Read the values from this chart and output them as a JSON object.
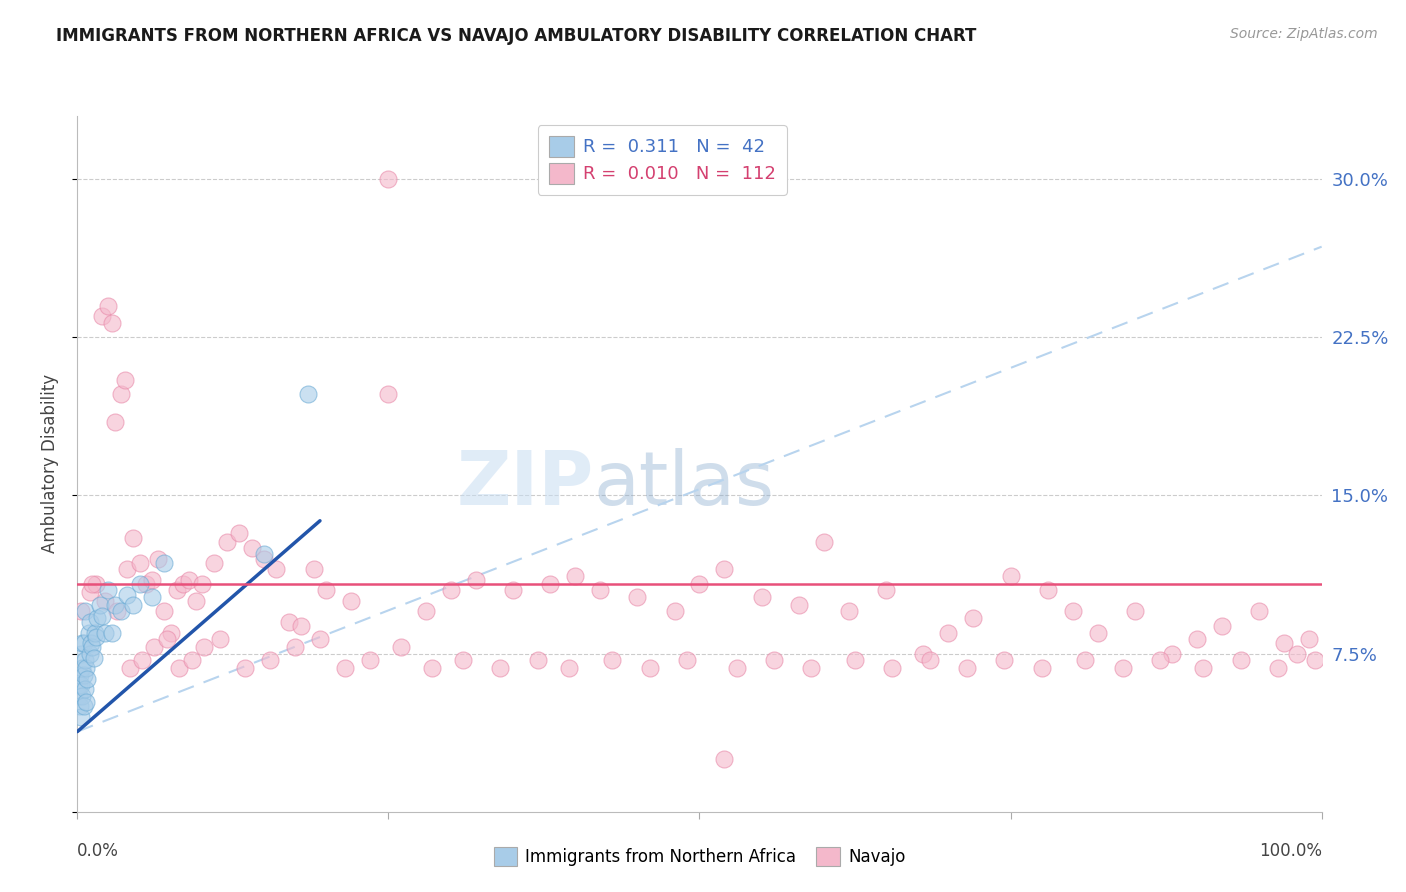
{
  "title": "IMMIGRANTS FROM NORTHERN AFRICA VS NAVAJO AMBULATORY DISABILITY CORRELATION CHART",
  "source": "Source: ZipAtlas.com",
  "ylabel": "Ambulatory Disability",
  "ytick_vals": [
    0.0,
    0.075,
    0.15,
    0.225,
    0.3
  ],
  "ytick_labels": [
    "",
    "7.5%",
    "15.0%",
    "22.5%",
    "30.0%"
  ],
  "xlim": [
    0.0,
    1.0
  ],
  "ylim": [
    0.0,
    0.33
  ],
  "legend_r_blue": "0.311",
  "legend_n_blue": "42",
  "legend_r_pink": "0.010",
  "legend_n_pink": "112",
  "legend_label_blue": "Immigrants from Northern Africa",
  "legend_label_pink": "Navajo",
  "blue_color": "#a8cce8",
  "pink_color": "#f4b8cb",
  "blue_edge_color": "#6aaad4",
  "pink_edge_color": "#e888a8",
  "blue_line_color": "#2255aa",
  "pink_line_color": "#e8507a",
  "dashed_line_color": "#b8d4ee",
  "blue_line_x": [
    0.0,
    0.195
  ],
  "blue_line_y": [
    0.038,
    0.138
  ],
  "pink_line_x": [
    0.0,
    1.0
  ],
  "pink_line_y": [
    0.108,
    0.108
  ],
  "dashed_line_x": [
    0.0,
    1.0
  ],
  "dashed_line_y": [
    0.038,
    0.268
  ],
  "xtick_positions": [
    0.0,
    0.25,
    0.5,
    0.75,
    1.0
  ],
  "blue_scatter_x": [
    0.001,
    0.001,
    0.002,
    0.002,
    0.003,
    0.003,
    0.003,
    0.004,
    0.004,
    0.004,
    0.005,
    0.005,
    0.005,
    0.006,
    0.006,
    0.006,
    0.007,
    0.007,
    0.008,
    0.009,
    0.01,
    0.01,
    0.011,
    0.012,
    0.013,
    0.014,
    0.015,
    0.016,
    0.018,
    0.02,
    0.022,
    0.025,
    0.028,
    0.03,
    0.035,
    0.04,
    0.045,
    0.05,
    0.06,
    0.07,
    0.15,
    0.185
  ],
  "blue_scatter_y": [
    0.055,
    0.06,
    0.05,
    0.065,
    0.045,
    0.06,
    0.075,
    0.055,
    0.068,
    0.08,
    0.05,
    0.065,
    0.08,
    0.058,
    0.072,
    0.095,
    0.052,
    0.068,
    0.063,
    0.085,
    0.075,
    0.09,
    0.08,
    0.078,
    0.073,
    0.085,
    0.083,
    0.092,
    0.098,
    0.093,
    0.085,
    0.105,
    0.085,
    0.098,
    0.095,
    0.103,
    0.098,
    0.108,
    0.102,
    0.118,
    0.122,
    0.198
  ],
  "pink_scatter_x": [
    0.003,
    0.01,
    0.015,
    0.02,
    0.025,
    0.028,
    0.03,
    0.035,
    0.038,
    0.04,
    0.045,
    0.05,
    0.055,
    0.06,
    0.065,
    0.07,
    0.075,
    0.08,
    0.085,
    0.09,
    0.095,
    0.1,
    0.11,
    0.12,
    0.13,
    0.14,
    0.15,
    0.16,
    0.17,
    0.18,
    0.19,
    0.2,
    0.22,
    0.25,
    0.28,
    0.3,
    0.32,
    0.35,
    0.38,
    0.4,
    0.42,
    0.45,
    0.48,
    0.5,
    0.52,
    0.55,
    0.58,
    0.6,
    0.62,
    0.65,
    0.68,
    0.7,
    0.72,
    0.75,
    0.78,
    0.8,
    0.82,
    0.85,
    0.88,
    0.9,
    0.92,
    0.95,
    0.97,
    0.98,
    0.99,
    0.012,
    0.022,
    0.032,
    0.042,
    0.052,
    0.062,
    0.072,
    0.082,
    0.092,
    0.102,
    0.115,
    0.135,
    0.155,
    0.175,
    0.195,
    0.215,
    0.235,
    0.26,
    0.285,
    0.31,
    0.34,
    0.37,
    0.395,
    0.43,
    0.46,
    0.49,
    0.53,
    0.56,
    0.59,
    0.625,
    0.655,
    0.685,
    0.715,
    0.745,
    0.775,
    0.81,
    0.84,
    0.87,
    0.905,
    0.935,
    0.965,
    0.995,
    0.25,
    0.52
  ],
  "pink_scatter_y": [
    0.095,
    0.104,
    0.108,
    0.235,
    0.24,
    0.232,
    0.185,
    0.198,
    0.205,
    0.115,
    0.13,
    0.118,
    0.108,
    0.11,
    0.12,
    0.095,
    0.085,
    0.105,
    0.108,
    0.11,
    0.1,
    0.108,
    0.118,
    0.128,
    0.132,
    0.125,
    0.12,
    0.115,
    0.09,
    0.088,
    0.115,
    0.105,
    0.1,
    0.198,
    0.095,
    0.105,
    0.11,
    0.105,
    0.108,
    0.112,
    0.105,
    0.102,
    0.095,
    0.108,
    0.115,
    0.102,
    0.098,
    0.128,
    0.095,
    0.105,
    0.075,
    0.085,
    0.092,
    0.112,
    0.105,
    0.095,
    0.085,
    0.095,
    0.075,
    0.082,
    0.088,
    0.095,
    0.08,
    0.075,
    0.082,
    0.108,
    0.1,
    0.095,
    0.068,
    0.072,
    0.078,
    0.082,
    0.068,
    0.072,
    0.078,
    0.082,
    0.068,
    0.072,
    0.078,
    0.082,
    0.068,
    0.072,
    0.078,
    0.068,
    0.072,
    0.068,
    0.072,
    0.068,
    0.072,
    0.068,
    0.072,
    0.068,
    0.072,
    0.068,
    0.072,
    0.068,
    0.072,
    0.068,
    0.072,
    0.068,
    0.072,
    0.068,
    0.072,
    0.068,
    0.072,
    0.068,
    0.072,
    0.3,
    0.025
  ]
}
